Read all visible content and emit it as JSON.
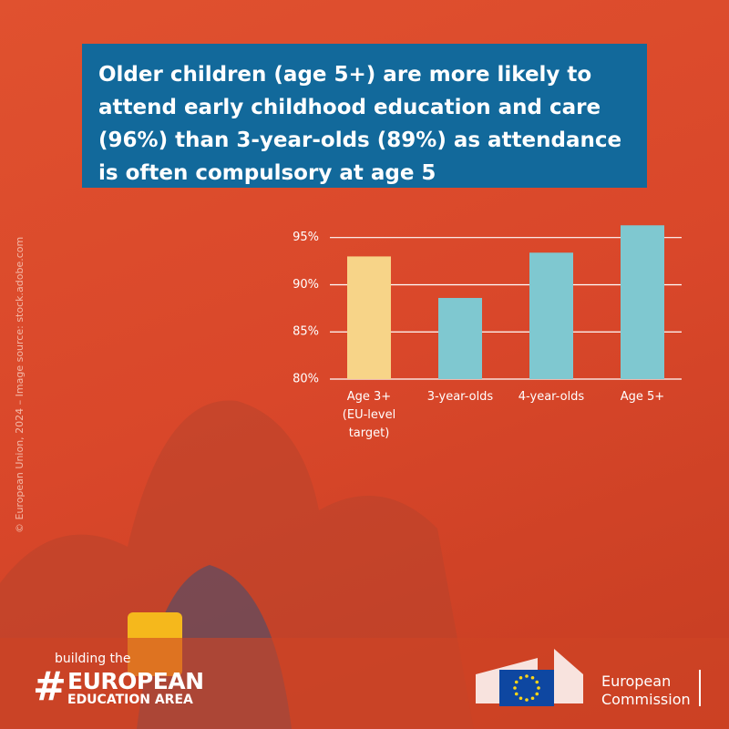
{
  "chart_data": {
    "type": "bar",
    "title": "Older children (age 5+) are more likely to attend early childhood education and care (96%) than 3-year-olds (89%) as attendance is often compulsory at age 5",
    "categories": [
      "Age 3+ (EU-level target)",
      "3-year-olds",
      "4-year-olds",
      "Age 5+"
    ],
    "values": [
      93,
      88.6,
      93.4,
      96.3
    ],
    "colors": [
      "#f7d488",
      "#7fc8d0",
      "#7fc8d0",
      "#7fc8d0"
    ],
    "ylim": [
      80,
      97
    ],
    "yticks": [
      {
        "value": 80,
        "label": "80%"
      },
      {
        "value": 85,
        "label": "85%"
      },
      {
        "value": 90,
        "label": "90%"
      },
      {
        "value": 95,
        "label": "95%"
      }
    ],
    "grid": true
  },
  "credit": "© European Union, 2024 – Image source: stock.adobe.com",
  "branding": {
    "tagline": "building the",
    "hash": "#",
    "line1": "EUROPEAN",
    "line2": "EDUCATION AREA"
  },
  "logo": {
    "line1": "European",
    "line2": "Commission"
  }
}
